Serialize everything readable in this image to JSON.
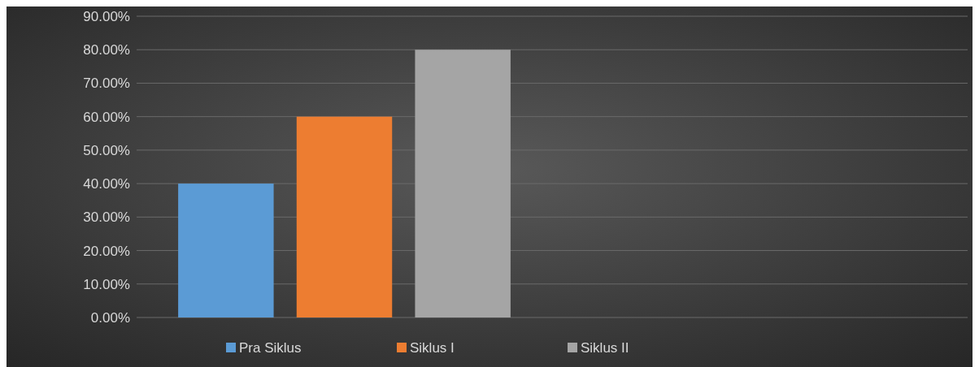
{
  "chart_data": {
    "type": "bar",
    "categories": [
      null,
      null
    ],
    "series": [
      {
        "name": "Pra Siklus",
        "color": "#5b9bd5",
        "values": [
          40,
          null
        ]
      },
      {
        "name": "Siklus I",
        "color": "#ed7d31",
        "values": [
          60,
          null
        ]
      },
      {
        "name": "Siklus II",
        "color": "#a5a5a5",
        "values": [
          80,
          null
        ]
      }
    ],
    "ylim": [
      0,
      90
    ],
    "yticks": [
      {
        "value": 0,
        "label": "0.00%"
      },
      {
        "value": 10,
        "label": "10.00%"
      },
      {
        "value": 20,
        "label": "20.00%"
      },
      {
        "value": 30,
        "label": "30.00%"
      },
      {
        "value": 40,
        "label": "40.00%"
      },
      {
        "value": 50,
        "label": "50.00%"
      },
      {
        "value": 60,
        "label": "60.00%"
      },
      {
        "value": 70,
        "label": "70.00%"
      },
      {
        "value": 80,
        "label": "80.00%"
      },
      {
        "value": 90,
        "label": "90.00%"
      }
    ],
    "grid": "y",
    "legend": "bottom"
  }
}
